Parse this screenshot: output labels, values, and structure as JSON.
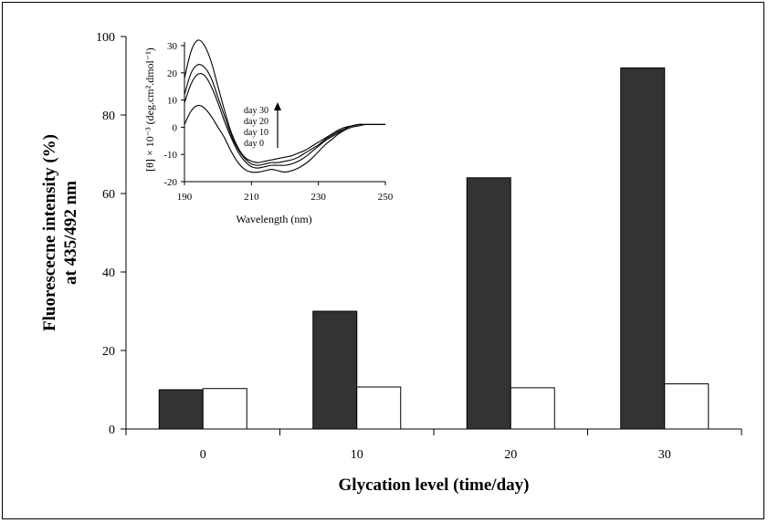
{
  "chart_data": [
    {
      "type": "bar",
      "title": "",
      "xlabel": "Glycation level (time/day)",
      "ylabel_line1": "Fluorescecne intensity (%)",
      "ylabel_line2": "at 435/492 nm",
      "categories": [
        "0",
        "10",
        "20",
        "30"
      ],
      "series": [
        {
          "values": [
            10,
            30,
            64,
            92
          ],
          "color": "#333333"
        },
        {
          "values": [
            10.3,
            10.7,
            10.5,
            11.5
          ],
          "color": "#ffffff"
        }
      ],
      "ylim": [
        0,
        100
      ],
      "yticks": [
        "0",
        "20",
        "40",
        "60",
        "80",
        "100"
      ],
      "grid": false
    },
    {
      "type": "line",
      "xlabel": "Wavelength (nm)",
      "ylabel": "[θ] × 10⁻³ (deg.cm².dmol⁻¹)",
      "xlim": [
        190,
        250
      ],
      "ylim": [
        -20,
        30
      ],
      "xticks": [
        "190",
        "210",
        "230",
        "250"
      ],
      "yticks": [
        "-20",
        "-10",
        "0",
        "10",
        "20",
        "30"
      ],
      "x": [
        190,
        192,
        194,
        196,
        198,
        200,
        202,
        204,
        206,
        208,
        210,
        212,
        214,
        216,
        218,
        220,
        222,
        224,
        226,
        228,
        230,
        232,
        234,
        236,
        238,
        240,
        242,
        244,
        246,
        248,
        250
      ],
      "series": [
        {
          "name": "day 0",
          "values": [
            1,
            6,
            8,
            7,
            4,
            0,
            -4,
            -9,
            -13,
            -15.5,
            -16.5,
            -16.5,
            -16,
            -15.5,
            -16,
            -16.5,
            -16,
            -15,
            -13.5,
            -11.5,
            -9,
            -6.5,
            -4.5,
            -2.5,
            -1,
            0,
            0.5,
            1,
            1,
            1,
            1
          ]
        },
        {
          "name": "day 10",
          "values": [
            9,
            16,
            19.5,
            19,
            15,
            9,
            2,
            -4,
            -9,
            -12.5,
            -14.5,
            -15,
            -14.5,
            -14,
            -14,
            -14,
            -13.5,
            -12.5,
            -11,
            -9,
            -7,
            -5,
            -3.5,
            -2,
            -0.5,
            0.5,
            1,
            1,
            1,
            1,
            1
          ]
        },
        {
          "name": "day 20",
          "values": [
            12,
            20,
            23,
            22,
            18,
            11,
            4,
            -3,
            -8,
            -11.5,
            -13.5,
            -14,
            -13.5,
            -13,
            -13,
            -12.5,
            -12,
            -11,
            -9.5,
            -8,
            -6.5,
            -4.5,
            -3,
            -1.5,
            -0.5,
            0.5,
            1,
            1,
            1,
            1,
            1
          ]
        },
        {
          "name": "day 30",
          "values": [
            18,
            28,
            32,
            30,
            24,
            15,
            6,
            -2,
            -7.5,
            -11,
            -12.5,
            -13,
            -12.5,
            -12,
            -11.5,
            -11,
            -10.5,
            -9.5,
            -8.5,
            -7,
            -5.5,
            -4,
            -2.5,
            -1,
            0,
            0.5,
            1,
            1,
            1,
            1,
            1
          ]
        }
      ],
      "legend": [
        "day 30",
        "day 20",
        "day 10",
        "day 0"
      ]
    }
  ]
}
